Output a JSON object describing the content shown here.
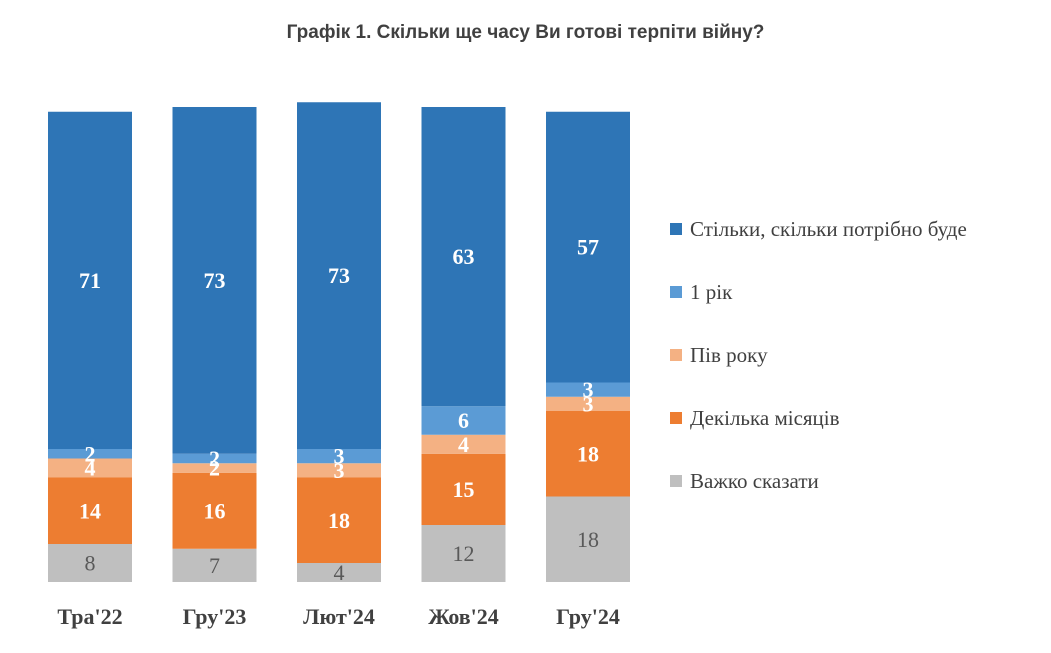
{
  "chart_data": {
    "type": "bar",
    "stacked": true,
    "title": "Графік 1. Скільки ще часу Ви готові терпіти війну?",
    "categories": [
      "Тра'22",
      "Гру'23",
      "Лют'24",
      "Жов'24",
      "Гру'24"
    ],
    "ylim": [
      0,
      100
    ],
    "grid": false,
    "legend_position": "right",
    "series": [
      {
        "name": "Важко сказати",
        "color": "#bfbfbf",
        "values": [
          8,
          7,
          4,
          12,
          18
        ]
      },
      {
        "name": "Декілька місяців",
        "color": "#ed7d31",
        "values": [
          14,
          16,
          18,
          15,
          18
        ]
      },
      {
        "name": "Пів року",
        "color": "#f4b183",
        "values": [
          4,
          2,
          3,
          4,
          3
        ]
      },
      {
        "name": "1 рік",
        "color": "#5b9bd5",
        "values": [
          2,
          2,
          3,
          6,
          3
        ]
      },
      {
        "name": "Стільки, скільки потрібно буде",
        "color": "#2e75b6",
        "values": [
          71,
          73,
          73,
          63,
          57
        ]
      }
    ],
    "legend_order": [
      "Стільки, скільки потрібно буде",
      "1 рік",
      "Пів року",
      "Декілька місяців",
      "Важко сказати"
    ]
  }
}
